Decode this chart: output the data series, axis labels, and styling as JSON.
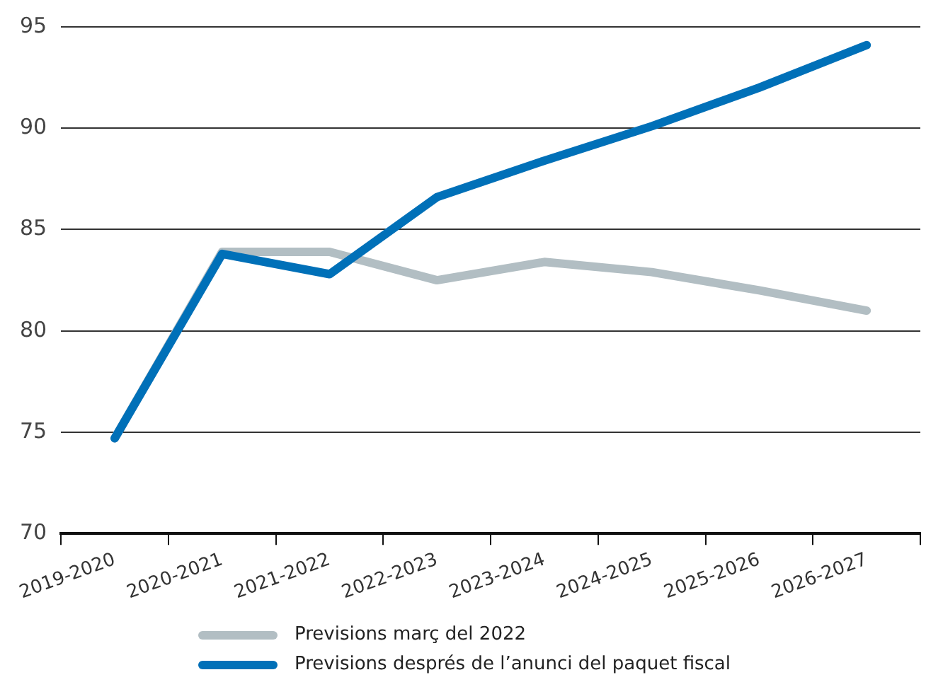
{
  "chart_data": {
    "type": "line",
    "categories": [
      "2019-2020",
      "2020-2021",
      "2021-2022",
      "2022-2023",
      "2023-2024",
      "2024-2025",
      "2025-2026",
      "2026-2027"
    ],
    "series": [
      {
        "name": "Previsions març del 2022",
        "color": "#b2bec3",
        "values": [
          74.7,
          83.9,
          83.9,
          82.5,
          83.4,
          82.9,
          82.0,
          81.0
        ]
      },
      {
        "name": "Previsions després de l’anunci del paquet fiscal",
        "color": "#0070b8",
        "values": [
          74.7,
          83.8,
          82.8,
          86.6,
          88.4,
          90.1,
          92.0,
          94.1
        ]
      }
    ],
    "ylim": [
      70,
      95
    ],
    "yticks": [
      70,
      75,
      80,
      85,
      90,
      95
    ],
    "grid": "y",
    "legend": "bottom",
    "marker": "none",
    "line_style": "solid"
  }
}
